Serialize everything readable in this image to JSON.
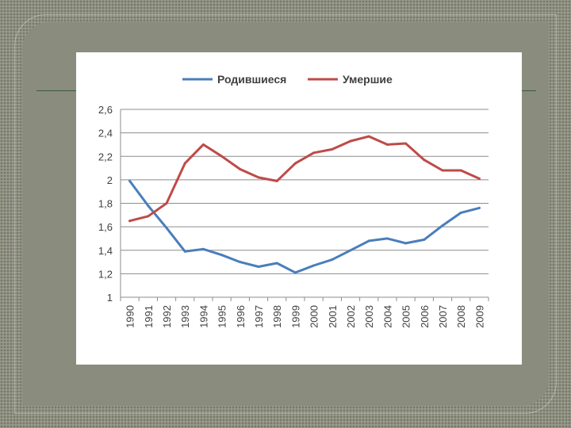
{
  "chart_data": {
    "type": "line",
    "x": [
      "1990",
      "1991",
      "1992",
      "1993",
      "1994",
      "1995",
      "1996",
      "1997",
      "1998",
      "1999",
      "2000",
      "2001",
      "2002",
      "2003",
      "2004",
      "2005",
      "2006",
      "2007",
      "2008",
      "2009"
    ],
    "series": [
      {
        "name": "Родившиеся",
        "color": "#4a7ebb",
        "values": [
          1.99,
          1.78,
          1.59,
          1.39,
          1.41,
          1.36,
          1.3,
          1.26,
          1.29,
          1.21,
          1.27,
          1.32,
          1.4,
          1.48,
          1.5,
          1.46,
          1.49,
          1.61,
          1.72,
          1.76
        ]
      },
      {
        "name": "Умершие",
        "color": "#be4b48",
        "values": [
          1.65,
          1.69,
          1.8,
          2.14,
          2.3,
          2.2,
          2.09,
          2.02,
          1.99,
          2.14,
          2.23,
          2.26,
          2.33,
          2.37,
          2.3,
          2.31,
          2.17,
          2.08,
          2.08,
          2.01
        ]
      }
    ],
    "ylim": [
      1,
      2.6
    ],
    "yticks": [
      "1",
      "1,2",
      "1,4",
      "1,6",
      "1,8",
      "2",
      "2,2",
      "2,4",
      "2,6"
    ],
    "grid": true,
    "legend": "top"
  }
}
